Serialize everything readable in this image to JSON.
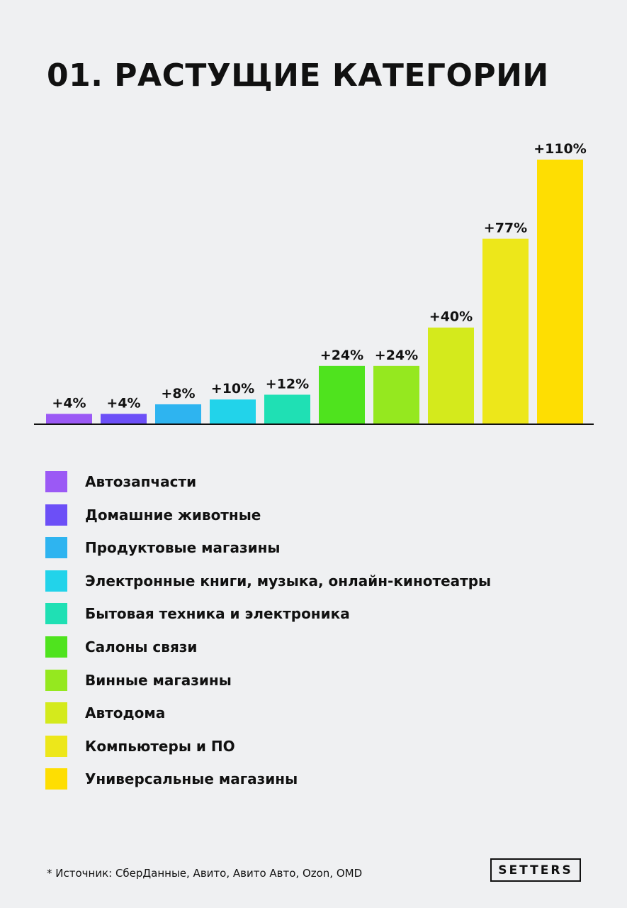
{
  "title": "01. РАСТУЩИЕ КАТЕГОРИИ",
  "chart_data": {
    "type": "bar",
    "categories": [
      "Автозапчасти",
      "Домашние животные",
      "Продуктовые магазины",
      "Электронные книги, музыка, онлайн-кинотеатры",
      "Бытовая техника и электроника",
      "Салоны связи",
      "Винные магазины",
      "Автодома",
      "Компьютеры и ПО",
      "Универсальные магазины"
    ],
    "values": [
      4,
      4,
      8,
      10,
      12,
      24,
      24,
      40,
      77,
      110
    ],
    "value_labels": [
      "+4%",
      "+4%",
      "+8%",
      "+10%",
      "+12%",
      "+24%",
      "+24%",
      "+40%",
      "+77%",
      "+110%"
    ],
    "colors": [
      "#9b59f5",
      "#6c4ff7",
      "#2eb4f0",
      "#22d3ea",
      "#1fe0b4",
      "#4fe31e",
      "#95e81f",
      "#d4ea1c",
      "#ede71a",
      "#fede02"
    ],
    "unit": "%",
    "ylim": [
      0,
      110
    ],
    "grid": false,
    "legend_position": "bottom"
  },
  "footnote": "* Источник: СберДанные, Авито, Авито Авто, Ozon, OMD",
  "brand": "SETTERS"
}
